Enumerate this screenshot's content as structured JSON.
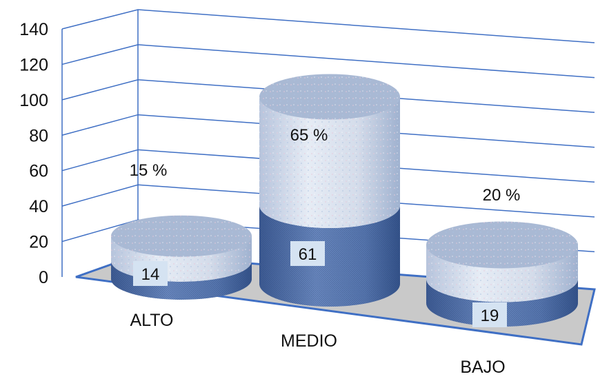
{
  "chart_data": {
    "type": "bar",
    "categories": [
      "ALTO",
      "MEDIO",
      "BAJO"
    ],
    "values": [
      14,
      61,
      19
    ],
    "data_labels": [
      "14",
      "61",
      "19"
    ],
    "percent_labels": [
      "15 %",
      "65 %",
      "20 %"
    ],
    "title": "",
    "xlabel": "",
    "ylabel": "",
    "ylim": [
      0,
      140
    ],
    "yticks": [
      "0",
      "20",
      "40",
      "60",
      "80",
      "100",
      "120",
      "140"
    ],
    "grid": true,
    "legend": "none",
    "style": "3d-cylinder",
    "colors": {
      "grid": "#3f6fc4",
      "floor": "#c9c9c9",
      "cylinder_dark": "#4f6fa8",
      "cylinder_light": "#c8d4e6"
    }
  }
}
